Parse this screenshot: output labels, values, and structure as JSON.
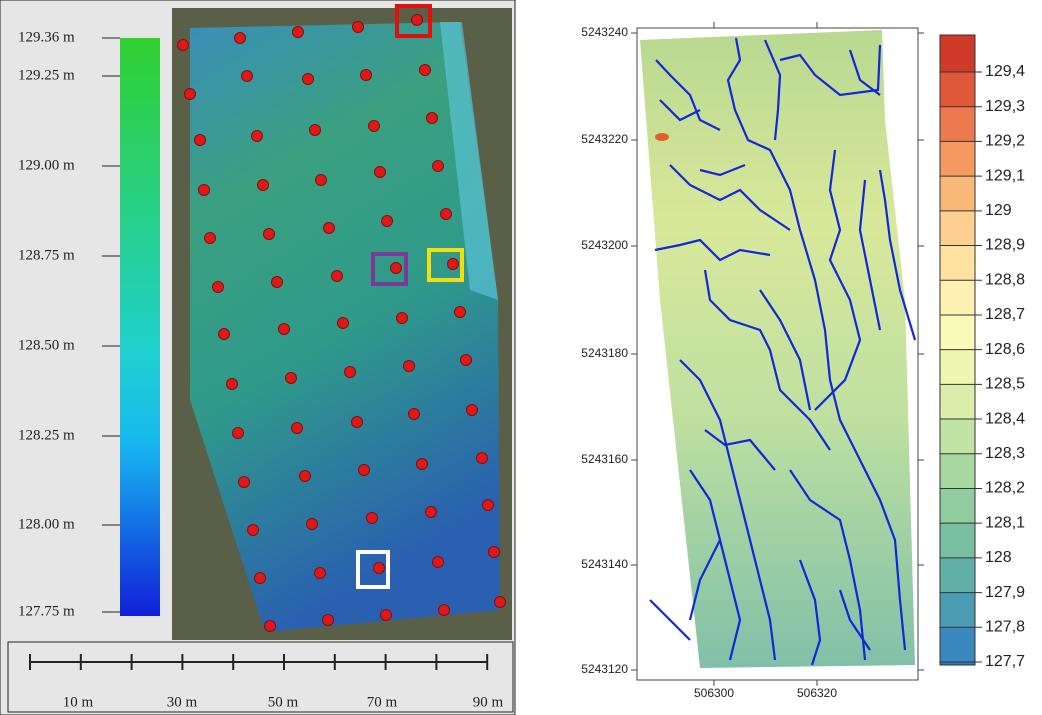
{
  "left_panel": {
    "elevation_legend": [
      "129.36 m",
      "129.25 m",
      "129.00 m",
      "128.75 m",
      "128.50 m",
      "128.25 m",
      "128.00 m",
      "127.75 m"
    ],
    "scale_bar": [
      "10 m",
      "30 m",
      "50 m",
      "70 m",
      "90 m"
    ]
  },
  "right_panel": {
    "y_ticks": [
      "5243240",
      "5243220",
      "5243200",
      "5243180",
      "5243160",
      "5243140",
      "5243120"
    ],
    "x_ticks": [
      "506300",
      "506320"
    ],
    "colorbar": [
      "129,4",
      "129,3",
      "129,2",
      "129,1",
      "129",
      "128,9",
      "128,8",
      "128,7",
      "128,6",
      "128,5",
      "128,4",
      "128,3",
      "128,2",
      "128,1",
      "128",
      "127,9",
      "127,8",
      "127,7"
    ]
  }
}
